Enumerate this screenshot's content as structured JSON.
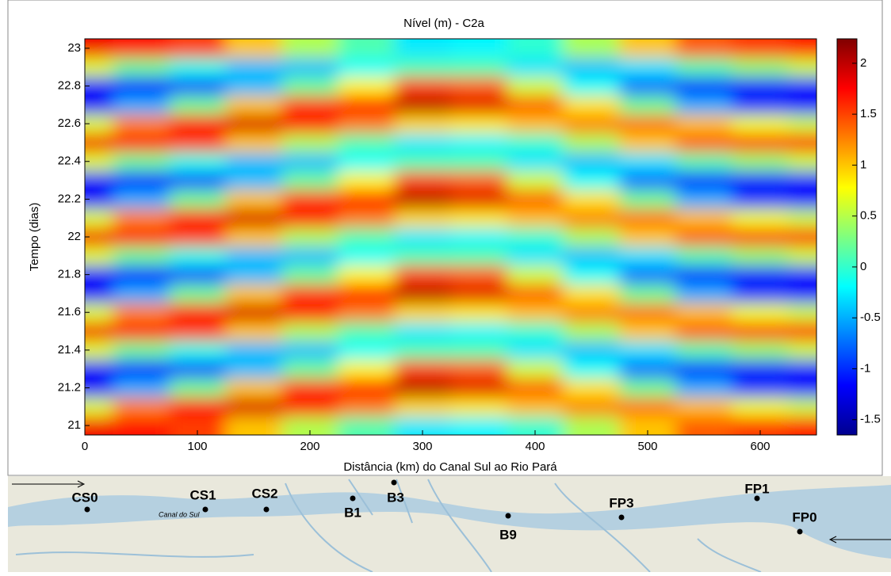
{
  "chart_data": {
    "type": "heatmap",
    "title": "Nível (m) - C2a",
    "x_label": "Distância (km) do Canal Sul ao Rio Pará",
    "y_label": "Tempo (dias)",
    "x": [
      0,
      50,
      100,
      150,
      200,
      250,
      300,
      350,
      400,
      450,
      500,
      550,
      600,
      650
    ],
    "y": [
      21,
      21.1,
      21.2,
      21.3,
      21.4,
      21.5,
      21.6,
      21.7,
      21.8,
      21.9,
      22,
      22.1,
      22.2,
      22.3,
      22.4,
      22.5,
      22.6,
      22.7,
      22.8,
      22.9,
      23
    ],
    "values": [
      [
        1.8,
        1.7,
        1.52,
        1.0,
        0.48,
        0.11,
        -0.27,
        -0.22,
        -0.02,
        0.46,
        1.0,
        1.41,
        1.54,
        1.65
      ],
      [
        0.66,
        1.26,
        1.73,
        1.9,
        1.71,
        1.29,
        0.93,
        0.87,
        1.03,
        1.27,
        1.32,
        1.03,
        0.72,
        0.58
      ],
      [
        -1.18,
        -0.5,
        0.24,
        1.0,
        1.54,
        1.72,
        2.01,
        1.87,
        1.42,
        0.88,
        0.23,
        -0.5,
        -0.96,
        -1.15
      ],
      [
        -1.18,
        -1.15,
        -0.89,
        -0.45,
        0.21,
        0.81,
        1.49,
        1.39,
        0.61,
        -0.17,
        -0.77,
        -1.06,
        -1.17,
        -1.15
      ],
      [
        0.66,
        0.21,
        -0.1,
        -0.45,
        -0.44,
        -0.18,
        0.09,
        0.1,
        -0.29,
        -0.44,
        -0.29,
        0.12,
        0.37,
        0.58
      ],
      [
        1.8,
        1.7,
        1.52,
        1.0,
        0.48,
        0.11,
        -0.27,
        -0.22,
        -0.02,
        0.46,
        1.0,
        1.41,
        1.54,
        1.65
      ],
      [
        0.66,
        1.26,
        1.73,
        1.9,
        1.71,
        1.29,
        0.93,
        0.87,
        1.03,
        1.27,
        1.32,
        1.03,
        0.72,
        0.58
      ],
      [
        -1.18,
        -0.5,
        0.24,
        1.0,
        1.54,
        1.72,
        2.01,
        1.87,
        1.42,
        0.88,
        0.23,
        -0.5,
        -0.96,
        -1.15
      ],
      [
        -1.18,
        -1.15,
        -0.89,
        -0.45,
        0.21,
        0.81,
        1.49,
        1.39,
        0.61,
        -0.17,
        -0.77,
        -1.06,
        -1.17,
        -1.15
      ],
      [
        0.66,
        0.21,
        -0.1,
        -0.45,
        -0.44,
        -0.18,
        0.09,
        0.1,
        -0.29,
        -0.44,
        -0.29,
        0.12,
        0.37,
        0.58
      ],
      [
        1.8,
        1.7,
        1.52,
        1.0,
        0.48,
        0.11,
        -0.27,
        -0.22,
        -0.02,
        0.46,
        1.0,
        1.41,
        1.54,
        1.65
      ],
      [
        0.66,
        1.26,
        1.73,
        1.9,
        1.71,
        1.29,
        0.93,
        0.87,
        1.03,
        1.27,
        1.32,
        1.03,
        0.72,
        0.58
      ],
      [
        -1.18,
        -0.5,
        0.24,
        1.0,
        1.54,
        1.72,
        2.01,
        1.87,
        1.42,
        0.88,
        0.23,
        -0.5,
        -0.96,
        -1.15
      ],
      [
        -1.18,
        -1.15,
        -0.89,
        -0.45,
        0.21,
        0.81,
        1.49,
        1.39,
        0.61,
        -0.17,
        -0.77,
        -1.06,
        -1.17,
        -1.15
      ],
      [
        0.66,
        0.21,
        -0.1,
        -0.45,
        -0.44,
        -0.18,
        0.09,
        0.1,
        -0.29,
        -0.44,
        -0.29,
        0.12,
        0.37,
        0.58
      ],
      [
        1.8,
        1.7,
        1.52,
        1.0,
        0.48,
        0.11,
        -0.27,
        -0.22,
        -0.02,
        0.46,
        1.0,
        1.41,
        1.54,
        1.65
      ],
      [
        0.66,
        1.26,
        1.73,
        1.9,
        1.71,
        1.29,
        0.93,
        0.87,
        1.03,
        1.27,
        1.32,
        1.03,
        0.72,
        0.58
      ],
      [
        -1.18,
        -0.5,
        0.24,
        1.0,
        1.54,
        1.72,
        2.01,
        1.87,
        1.42,
        0.88,
        0.23,
        -0.5,
        -0.96,
        -1.15
      ],
      [
        -1.18,
        -1.15,
        -0.89,
        -0.45,
        0.21,
        0.81,
        1.49,
        1.39,
        0.61,
        -0.17,
        -0.77,
        -1.06,
        -1.17,
        -1.15
      ],
      [
        0.66,
        0.21,
        -0.1,
        -0.45,
        -0.44,
        -0.18,
        0.09,
        0.1,
        -0.29,
        -0.44,
        -0.29,
        0.12,
        0.37,
        0.58
      ],
      [
        1.8,
        1.7,
        1.52,
        1.0,
        0.48,
        0.11,
        -0.27,
        -0.22,
        -0.02,
        0.46,
        1.0,
        1.41,
        1.54,
        1.65
      ]
    ],
    "colormap": "jet",
    "xlim": [
      0,
      650
    ],
    "xticks": [
      0,
      100,
      200,
      300,
      400,
      500,
      600
    ],
    "ylim": [
      20.95,
      23.05
    ],
    "yticks": [
      21,
      21.2,
      21.4,
      21.6,
      21.8,
      22,
      22.2,
      22.4,
      22.6,
      22.8,
      23
    ],
    "clim": [
      -1.65,
      2.24
    ],
    "cticks": [
      -1.5,
      -1,
      -0.5,
      0,
      0.5,
      1,
      1.5,
      2
    ]
  },
  "map": {
    "stations": [
      "CS0",
      "CS1",
      "CS2",
      "B1",
      "B3",
      "B9",
      "FP3",
      "FP1",
      "FP0"
    ],
    "caption": "Canal do Sul"
  }
}
